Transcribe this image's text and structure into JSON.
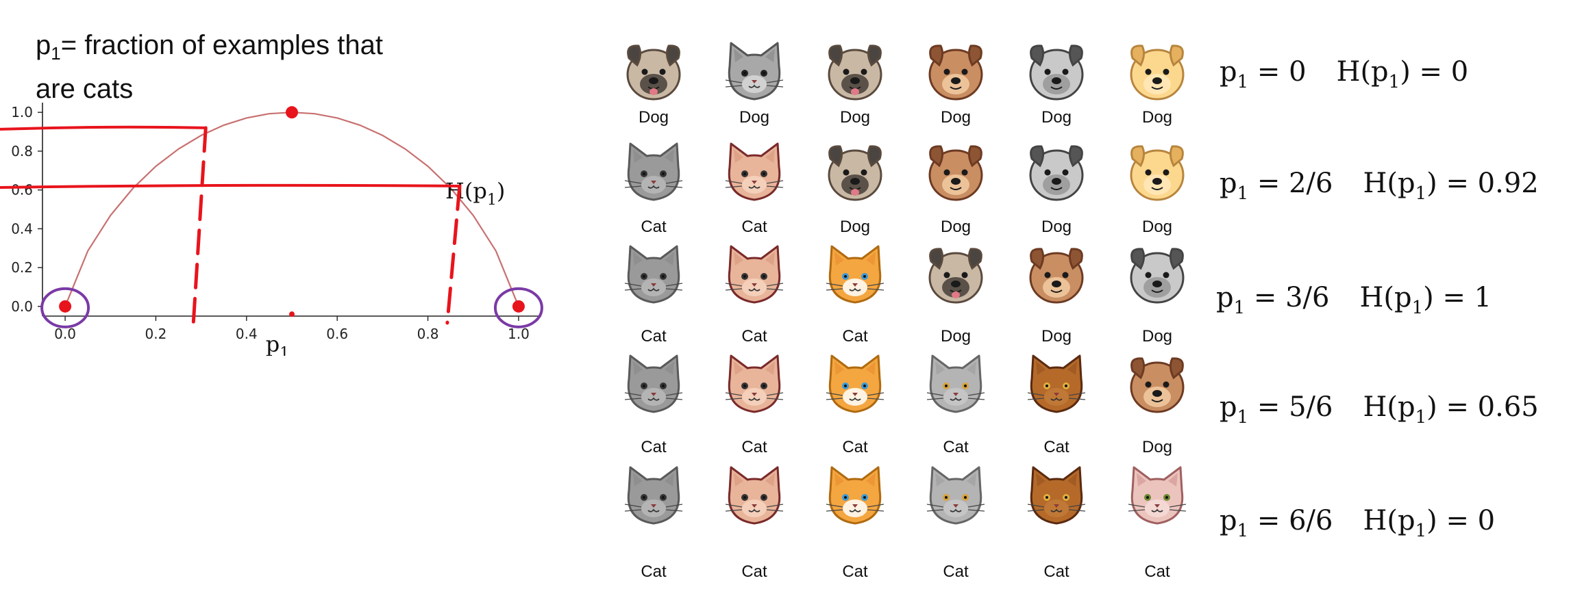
{
  "definition": {
    "var_base": "p",
    "var_sub": "1",
    "text_line1": "= fraction of examples that",
    "text_line2": "are cats"
  },
  "chart_data": {
    "type": "line",
    "xlabel_base": "p",
    "xlabel_sub": "1",
    "xlim": [
      -0.05,
      1.05
    ],
    "ylim": [
      -0.05,
      1.05
    ],
    "x_ticks": [
      0.0,
      0.2,
      0.4,
      0.6,
      0.8,
      1.0
    ],
    "y_ticks": [
      0.0,
      0.2,
      0.4,
      0.6,
      0.8,
      1.0
    ],
    "x_tick_labels": [
      "0.0",
      "0.2",
      "0.4",
      "0.6",
      "0.8",
      "1.0"
    ],
    "y_tick_labels": [
      "0.0",
      "0.2",
      "0.4",
      "0.6",
      "0.8",
      "1.0"
    ],
    "series": [
      {
        "name": "H(p1)",
        "label_text": "H(p",
        "label_sub": "1",
        "label_close": ")",
        "color": "#c87070",
        "x": [
          0.0,
          0.05,
          0.1,
          0.15,
          0.2,
          0.25,
          0.3,
          0.35,
          0.4,
          0.45,
          0.5,
          0.55,
          0.6,
          0.65,
          0.7,
          0.75,
          0.8,
          0.85,
          0.9,
          0.95,
          1.0
        ],
        "y": [
          0.0,
          0.286,
          0.469,
          0.61,
          0.722,
          0.811,
          0.881,
          0.934,
          0.971,
          0.993,
          1.0,
          0.993,
          0.971,
          0.934,
          0.881,
          0.811,
          0.722,
          0.61,
          0.469,
          0.286,
          0.0
        ]
      }
    ],
    "annotations": {
      "ink_color": "#e8141c",
      "circle_color": "#7a3aa6",
      "horizontal_lines": [
        0.92,
        0.62
      ],
      "vertical_dashed_lines": [
        0.31,
        0.87
      ],
      "dots": [
        [
          0.0,
          0.0
        ],
        [
          0.5,
          1.0
        ],
        [
          1.0,
          0.0
        ],
        [
          0.5,
          -0.04
        ]
      ],
      "circled_points": [
        [
          0.0,
          0.0
        ],
        [
          1.0,
          0.0
        ]
      ]
    }
  },
  "grid": {
    "rows": [
      {
        "animals": [
          "pug",
          "gray-cat",
          "pug",
          "brown-dog",
          "gray-dog",
          "yellow-dog"
        ],
        "labels": [
          "Dog",
          "Dog",
          "Dog",
          "Dog",
          "Dog",
          "Dog"
        ]
      },
      {
        "animals": [
          "gray-cat-smile",
          "pink-cat",
          "pug",
          "brown-dog",
          "gray-dog",
          "yellow-dog"
        ],
        "labels": [
          "Cat",
          "Cat",
          "Dog",
          "Dog",
          "Dog",
          "Dog"
        ]
      },
      {
        "animals": [
          "gray-cat-smile",
          "pink-cat",
          "orange-cat",
          "pug",
          "brown-dog",
          "gray-dog"
        ],
        "labels": [
          "Cat",
          "Cat",
          "Cat",
          "Dog",
          "Dog",
          "Dog"
        ]
      },
      {
        "animals": [
          "gray-cat-smile",
          "pink-cat",
          "orange-cat",
          "gray-cat-eyes",
          "brown-cat",
          "brown-dog"
        ],
        "labels": [
          "Cat",
          "Cat",
          "Cat",
          "Cat",
          "Cat",
          "Dog"
        ]
      },
      {
        "animals": [
          "gray-cat-smile",
          "pink-cat",
          "orange-cat",
          "gray-cat-eyes",
          "brown-cat",
          "pink-tabby-cat"
        ],
        "labels": [
          "Cat",
          "Cat",
          "Cat",
          "Cat",
          "Cat",
          "Cat"
        ]
      }
    ]
  },
  "equations": [
    {
      "p_base": "p",
      "p_sub": "1",
      "p_value": " = 0",
      "h_base": "H(p",
      "h_sub": "1",
      "h_value": ") = 0"
    },
    {
      "p_base": "p",
      "p_sub": "1",
      "p_value": " = 2/6",
      "h_base": "H(p",
      "h_sub": "1",
      "h_value": ") = 0.92"
    },
    {
      "p_base": "p",
      "p_sub": "1",
      "p_value": " = 3/6",
      "h_base": "H(p",
      "h_sub": "1",
      "h_value": ") = 1"
    },
    {
      "p_base": "p",
      "p_sub": "1",
      "p_value": " = 5/6",
      "h_base": "H(p",
      "h_sub": "1",
      "h_value": ") = 0.65"
    },
    {
      "p_base": "p",
      "p_sub": "1",
      "p_value": " = 6/6",
      "h_base": "H(p",
      "h_sub": "1",
      "h_value": ") = 0"
    }
  ]
}
